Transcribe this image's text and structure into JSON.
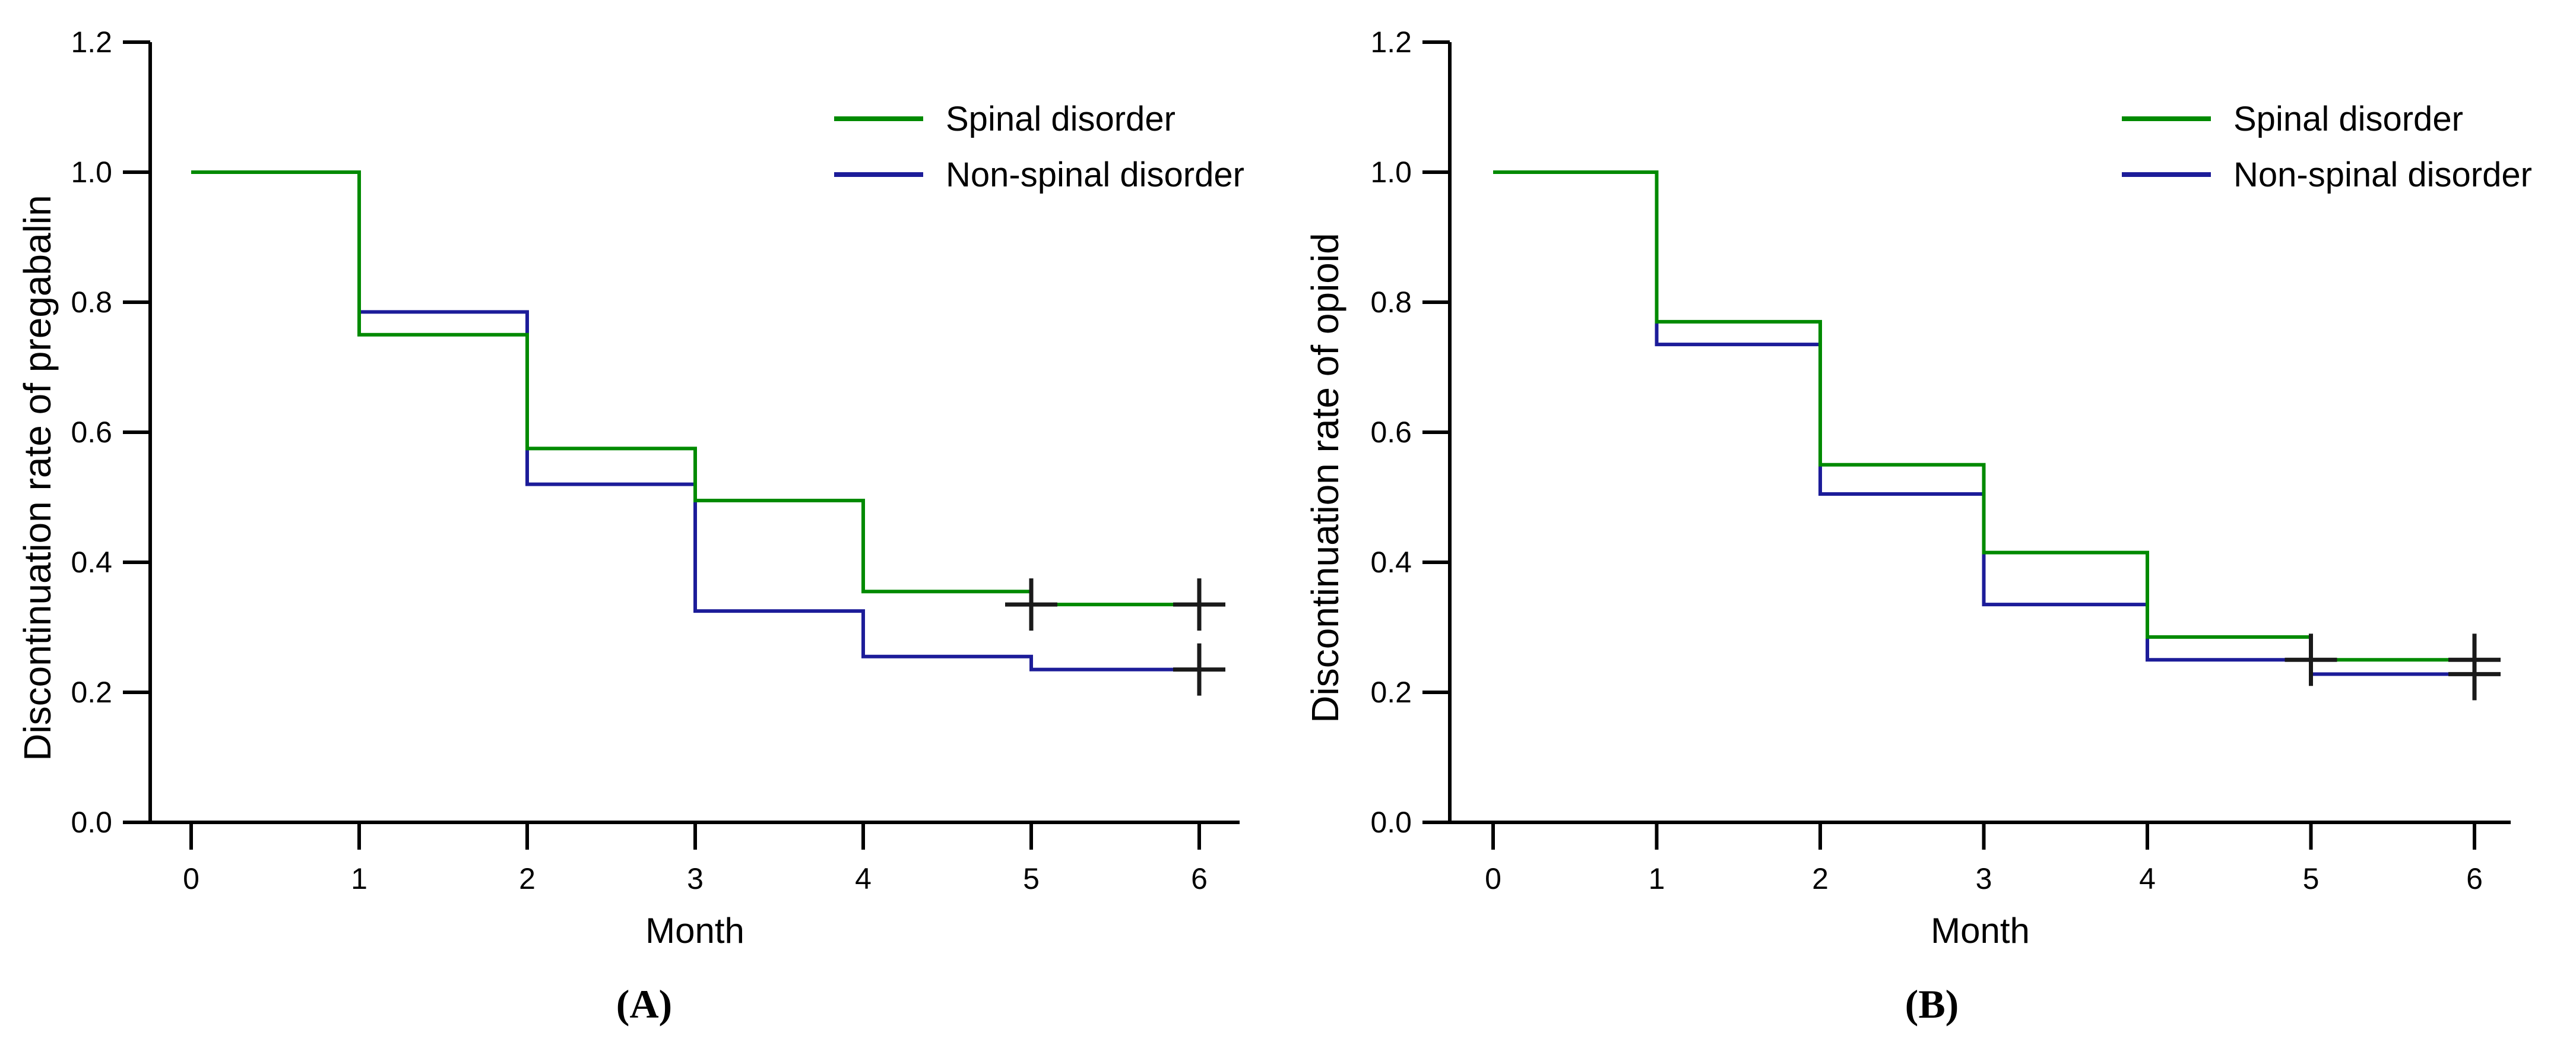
{
  "page": {
    "background": "#ffffff",
    "axis_color": "#000000",
    "censor_mark_color": "#1a1a1a"
  },
  "chart_data": [
    {
      "type": "line",
      "subtype": "kaplan-meier-step",
      "panel_label": "(A)",
      "xlabel": "Month",
      "ylabel": "Discontinuation rate of pregabalin",
      "xlim": [
        0,
        6
      ],
      "ylim": [
        0.0,
        1.2
      ],
      "xticks": [
        "0",
        "1",
        "2",
        "3",
        "4",
        "5",
        "6"
      ],
      "yticks": [
        0.0,
        0.2,
        0.4,
        0.6,
        0.8,
        1.0,
        1.2
      ],
      "grid": false,
      "legend_position": "top-right",
      "months": [
        0,
        1,
        2,
        3,
        4,
        5,
        6
      ],
      "series": [
        {
          "name": "Spinal disorder",
          "color": "#008a00",
          "values": [
            1.0,
            0.75,
            0.575,
            0.495,
            0.355,
            0.335,
            0.335
          ]
        },
        {
          "name": "Non-spinal disorder",
          "color": "#1c1c99",
          "values": [
            1.0,
            0.785,
            0.52,
            0.325,
            0.255,
            0.235,
            0.235
          ]
        }
      ],
      "censor_marks": [
        {
          "month": 5,
          "value": 0.335
        },
        {
          "month": 6,
          "value": 0.335
        },
        {
          "month": 6,
          "value": 0.235
        }
      ]
    },
    {
      "type": "line",
      "subtype": "kaplan-meier-step",
      "panel_label": "(B)",
      "xlabel": "Month",
      "ylabel": "Discontinuation rate of opioid",
      "xlim": [
        0,
        6
      ],
      "ylim": [
        0.0,
        1.2
      ],
      "xticks": [
        "0",
        "1",
        "2",
        "3",
        "4",
        "5",
        "6"
      ],
      "yticks": [
        0.0,
        0.2,
        0.4,
        0.6,
        0.8,
        1.0,
        1.2
      ],
      "grid": false,
      "legend_position": "top-right",
      "months": [
        0,
        1,
        2,
        3,
        4,
        5,
        6
      ],
      "series": [
        {
          "name": "Spinal disorder",
          "color": "#008a00",
          "values": [
            1.0,
            0.77,
            0.55,
            0.415,
            0.285,
            0.25,
            0.25
          ]
        },
        {
          "name": "Non-spinal disorder",
          "color": "#1c1c99",
          "values": [
            1.0,
            0.735,
            0.505,
            0.335,
            0.25,
            0.228,
            0.228
          ]
        }
      ],
      "censor_marks": [
        {
          "month": 5,
          "value": 0.25
        },
        {
          "month": 6,
          "value": 0.25
        },
        {
          "month": 6,
          "value": 0.228
        }
      ]
    }
  ]
}
